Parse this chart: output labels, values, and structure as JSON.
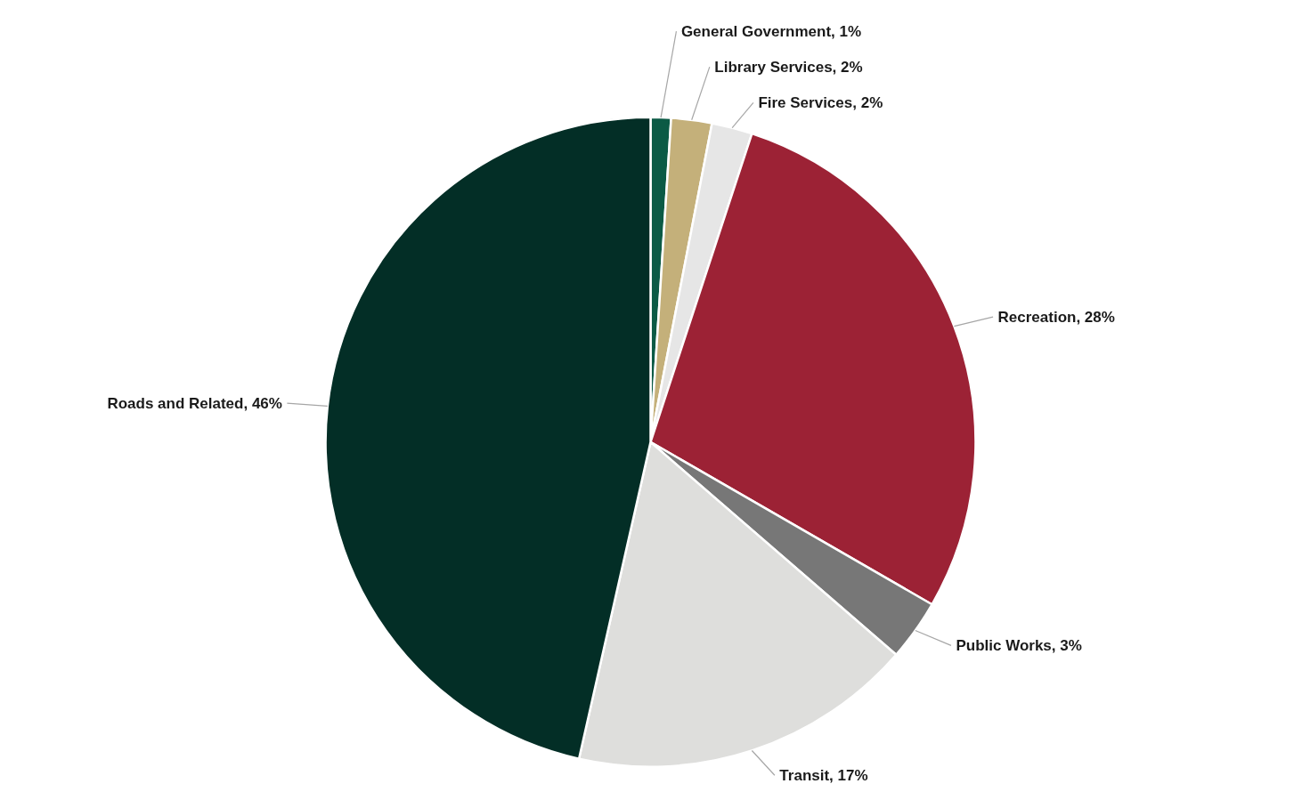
{
  "chart_data": {
    "type": "pie",
    "categories": [
      "General Government",
      "Library Services",
      "Fire Services",
      "Recreation",
      "Public Works",
      "Transit",
      "Roads and Related"
    ],
    "values": [
      1,
      2,
      2,
      28,
      3,
      17,
      46
    ],
    "value_labels": [
      "1%",
      "2%",
      "2%",
      "28%",
      "3%",
      "17%",
      "46%"
    ],
    "colors": [
      "#0b5a45",
      "#c4b07a",
      "#e6e6e6",
      "#9c2235",
      "#777777",
      "#dededc",
      "#032e26"
    ]
  }
}
